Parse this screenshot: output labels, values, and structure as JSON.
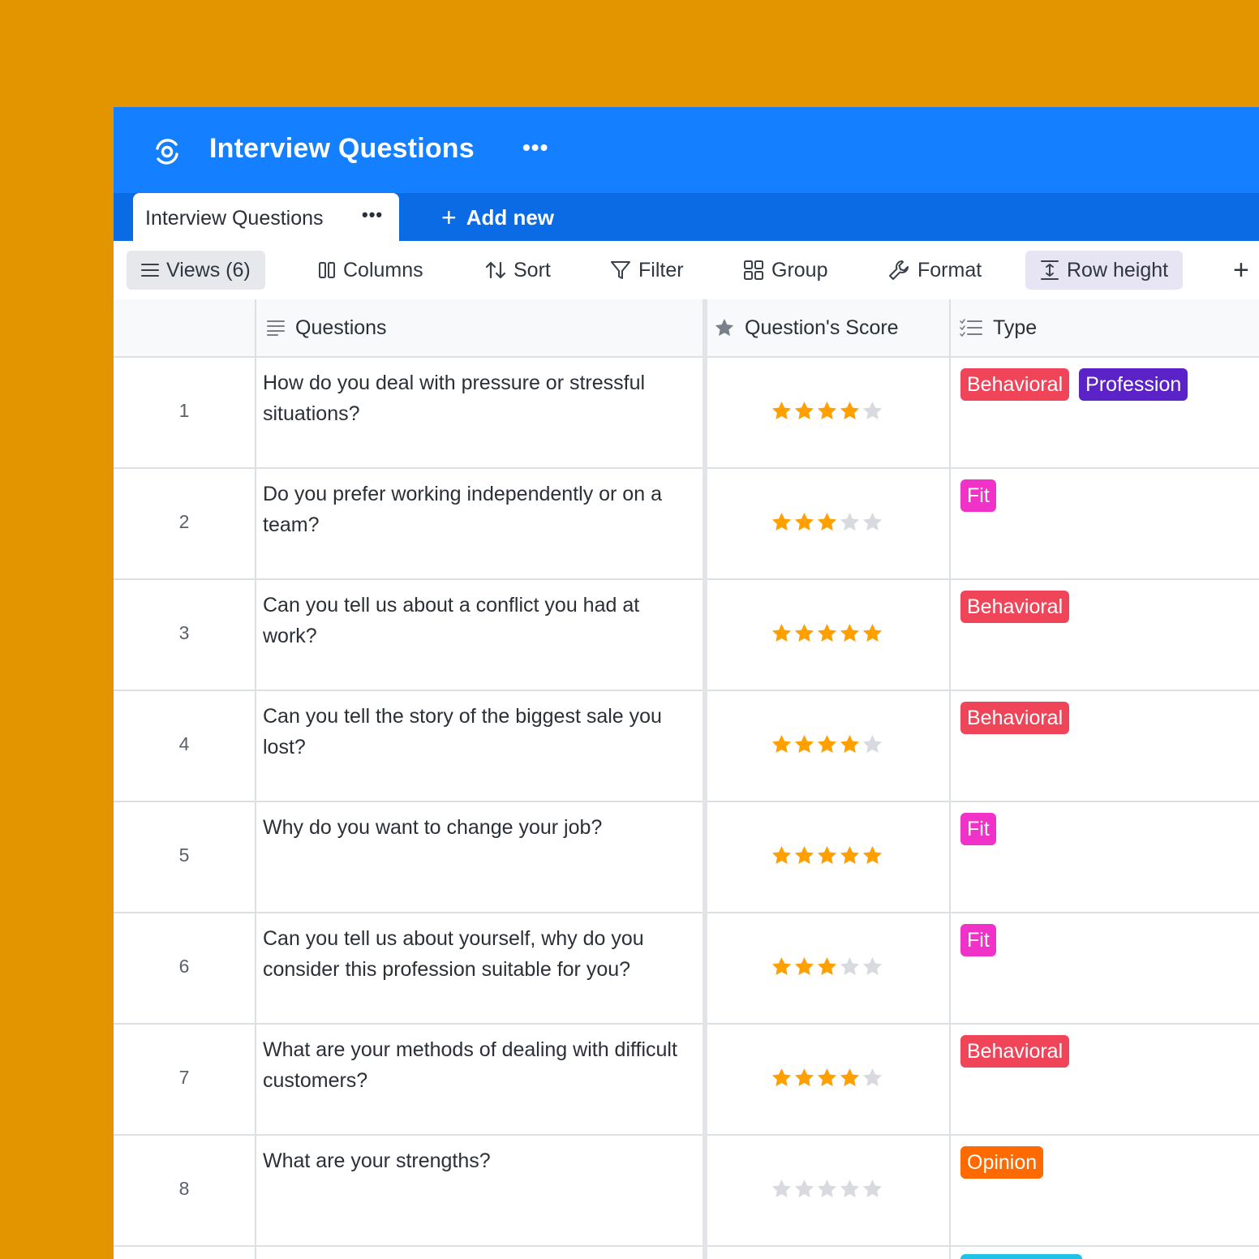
{
  "app": {
    "title": "Interview Questions",
    "more_label": "•••"
  },
  "tabs": {
    "active_label": "Interview Questions",
    "active_more": "•••",
    "add_new_label": "Add new"
  },
  "toolbar": {
    "views_label": "Views (6)",
    "columns_label": "Columns",
    "sort_label": "Sort",
    "filter_label": "Filter",
    "group_label": "Group",
    "format_label": "Format",
    "row_height_label": "Row height",
    "add_label": "+"
  },
  "columns": {
    "questions": "Questions",
    "score": "Question's Score",
    "type": "Type"
  },
  "colors": {
    "app_header": "#1580FF",
    "tab_bar": "#0A6BE5",
    "star_filled": "#FFA000",
    "star_empty": "#D8DADF",
    "Behavioral": "#F04458",
    "Profession": "#5B22C8",
    "Fit": "#F032C9",
    "Opinion": "#FF6A00"
  },
  "rows": [
    {
      "num": "1",
      "question": "How do you deal with pressure or stressful situations?",
      "score": 4,
      "tags": [
        "Behavioral",
        "Profession"
      ]
    },
    {
      "num": "2",
      "question": "Do you prefer working independently or on a team?",
      "score": 3,
      "tags": [
        "Fit"
      ]
    },
    {
      "num": "3",
      "question": "Can you tell us about a conflict you had at work?",
      "score": 5,
      "tags": [
        "Behavioral"
      ]
    },
    {
      "num": "4",
      "question": "Can you tell the story of the biggest sale you lost?",
      "score": 4,
      "tags": [
        "Behavioral"
      ]
    },
    {
      "num": "5",
      "question": "Why do you want to change your job?",
      "score": 5,
      "tags": [
        "Fit"
      ]
    },
    {
      "num": "6",
      "question": "Can you tell us about yourself, why do you consider this profession suitable for you?",
      "score": 3,
      "tags": [
        "Fit"
      ]
    },
    {
      "num": "7",
      "question": "What are your methods of dealing with difficult customers?",
      "score": 4,
      "tags": [
        "Behavioral"
      ]
    },
    {
      "num": "8",
      "question": "What are your strengths?",
      "score": 0,
      "tags": [
        "Opinion"
      ]
    }
  ]
}
